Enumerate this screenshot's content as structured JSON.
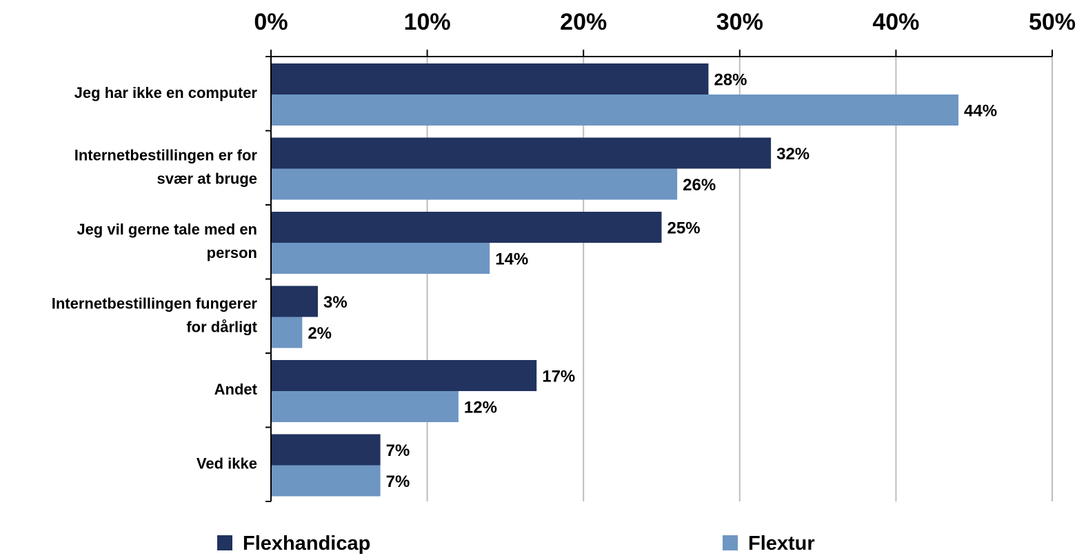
{
  "chart_data": {
    "type": "bar",
    "orientation": "horizontal",
    "categories": [
      [
        "Jeg har ikke en computer"
      ],
      [
        "Internetbestillingen er for",
        "svær at bruge"
      ],
      [
        "Jeg vil gerne tale med en",
        "person"
      ],
      [
        "Internetbestillingen fungerer",
        "for dårligt"
      ],
      [
        "Andet"
      ],
      [
        "Ved ikke"
      ]
    ],
    "series": [
      {
        "name": "Flexhandicap",
        "color": "#21335e",
        "values": [
          28,
          32,
          25,
          3,
          17,
          7
        ],
        "labels": [
          "28%",
          "32%",
          "25%",
          "3%",
          "17%",
          "7%"
        ]
      },
      {
        "name": "Flextur",
        "color": "#6e96c3",
        "values": [
          44,
          26,
          14,
          2,
          12,
          7
        ],
        "labels": [
          "44%",
          "26%",
          "14%",
          "2%",
          "12%",
          "7%"
        ]
      }
    ],
    "xlim": [
      0,
      50
    ],
    "ticks": [
      0,
      10,
      20,
      30,
      40,
      50
    ],
    "tick_labels": [
      "0%",
      "10%",
      "20%",
      "30%",
      "40%",
      "50%"
    ],
    "axis_position": "top",
    "grid": true,
    "legend_position": "bottom"
  }
}
